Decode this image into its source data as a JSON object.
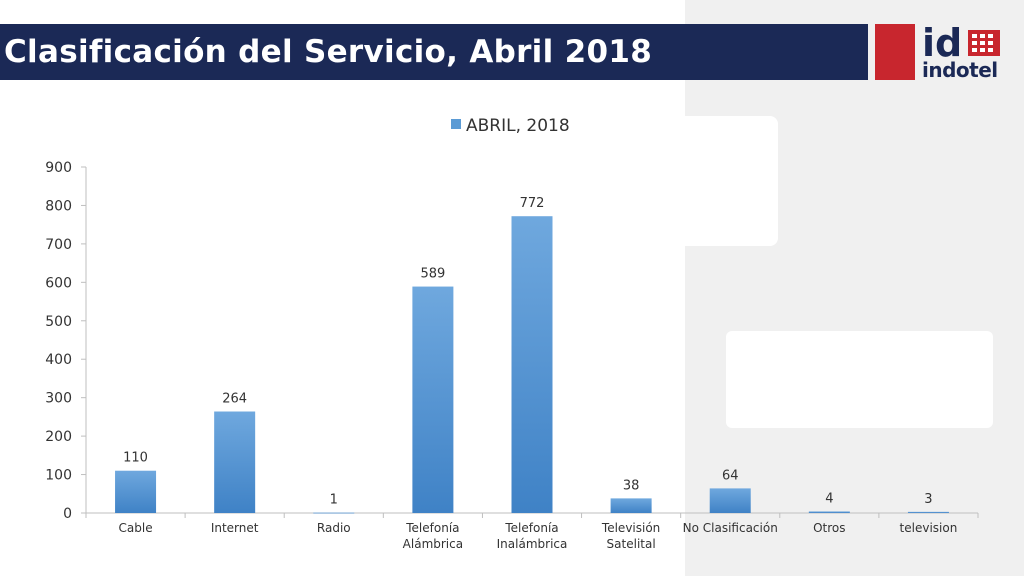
{
  "page": {
    "title": "Clasificación del Servicio, Abril 2018",
    "logo": {
      "mark": "id",
      "name": "indotel"
    }
  },
  "colors": {
    "title_bar": "#1b2956",
    "logo_red": "#c8262e",
    "bar": "#5b9bd5"
  },
  "chart_data": {
    "type": "bar",
    "title": "",
    "xlabel": "",
    "ylabel": "",
    "categories": [
      [
        "Cable"
      ],
      [
        "Internet"
      ],
      [
        "Radio"
      ],
      [
        "Telefonía",
        "Alámbrica"
      ],
      [
        "Telefonía",
        "Inalámbrica"
      ],
      [
        "Televisión",
        "Satelital"
      ],
      [
        "No Clasificación"
      ],
      [
        "Otros"
      ],
      [
        "television"
      ]
    ],
    "series": [
      {
        "name": "ABRIL, 2018",
        "values": [
          110,
          264,
          1,
          589,
          772,
          38,
          64,
          4,
          3
        ]
      }
    ],
    "ylim": [
      0,
      900
    ],
    "yticks": [
      0,
      100,
      200,
      300,
      400,
      500,
      600,
      700,
      800,
      900
    ],
    "legend": "top",
    "grid": false,
    "data_labels": true
  }
}
